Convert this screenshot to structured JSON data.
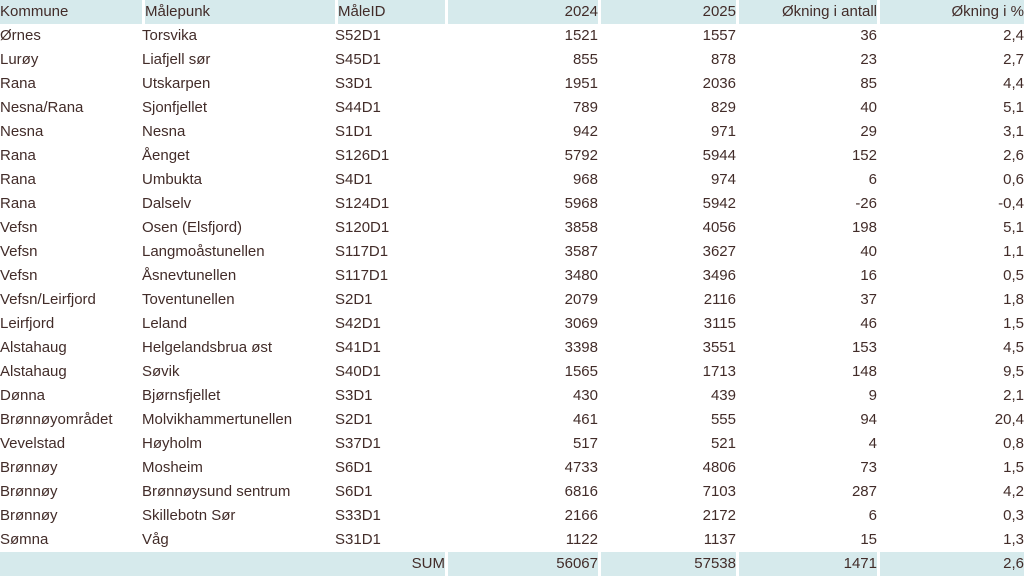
{
  "colors": {
    "header_bg": "#D6EAEC",
    "sum_bg": "#D6EAEC",
    "row_bg": "#FFFFFF",
    "text": "#422C29",
    "separator": "#FFFFFF"
  },
  "table": {
    "columns": [
      {
        "key": "kommune",
        "label": "Kommune",
        "align": "left"
      },
      {
        "key": "malepunk",
        "label": "Målepunk",
        "align": "left"
      },
      {
        "key": "maleid",
        "label": "MåleID",
        "align": "left"
      },
      {
        "key": "y2024",
        "label": "2024",
        "align": "right"
      },
      {
        "key": "y2025",
        "label": "2025",
        "align": "right"
      },
      {
        "key": "okning_antall",
        "label": "Økning i antall",
        "align": "right"
      },
      {
        "key": "okning_pct",
        "label": "Økning i %",
        "align": "right"
      }
    ],
    "rows": [
      [
        "Ørnes",
        "Torsvika",
        "S52D1",
        "1521",
        "1557",
        "36",
        "2,4"
      ],
      [
        "Lurøy",
        "Liafjell sør",
        "S45D1",
        "855",
        "878",
        "23",
        "2,7"
      ],
      [
        "Rana",
        "Utskarpen",
        "S3D1",
        "1951",
        "2036",
        "85",
        "4,4"
      ],
      [
        "Nesna/Rana",
        "Sjonfjellet",
        "S44D1",
        "789",
        "829",
        "40",
        "5,1"
      ],
      [
        "Nesna",
        "Nesna",
        "S1D1",
        "942",
        "971",
        "29",
        "3,1"
      ],
      [
        "Rana",
        "Åenget",
        "S126D1",
        "5792",
        "5944",
        "152",
        "2,6"
      ],
      [
        "Rana",
        "Umbukta",
        "S4D1",
        "968",
        "974",
        "6",
        "0,6"
      ],
      [
        "Rana",
        "Dalselv",
        "S124D1",
        "5968",
        "5942",
        "-26",
        "-0,4"
      ],
      [
        "Vefsn",
        "Osen (Elsfjord)",
        "S120D1",
        "3858",
        "4056",
        "198",
        "5,1"
      ],
      [
        "Vefsn",
        "Langmoåstunellen",
        "S117D1",
        "3587",
        "3627",
        "40",
        "1,1"
      ],
      [
        "Vefsn",
        "Åsnevtunellen",
        "S117D1",
        "3480",
        "3496",
        "16",
        "0,5"
      ],
      [
        "Vefsn/Leirfjord",
        "Toventunellen",
        "S2D1",
        "2079",
        "2116",
        "37",
        "1,8"
      ],
      [
        "Leirfjord",
        "Leland",
        "S42D1",
        "3069",
        "3115",
        "46",
        "1,5"
      ],
      [
        "Alstahaug",
        "Helgelandsbrua øst",
        "S41D1",
        "3398",
        "3551",
        "153",
        "4,5"
      ],
      [
        "Alstahaug",
        "Søvik",
        "S40D1",
        "1565",
        "1713",
        "148",
        "9,5"
      ],
      [
        "Dønna",
        "Bjørnsfjellet",
        "S3D1",
        "430",
        "439",
        "9",
        "2,1"
      ],
      [
        "Brønnøyområdet",
        "Molvikhammertunellen",
        "S2D1",
        "461",
        "555",
        "94",
        "20,4"
      ],
      [
        "Vevelstad",
        "Høyholm",
        "S37D1",
        "517",
        "521",
        "4",
        "0,8"
      ],
      [
        "Brønnøy",
        "Mosheim",
        "S6D1",
        "4733",
        "4806",
        "73",
        "1,5"
      ],
      [
        "Brønnøy",
        "Brønnøysund sentrum",
        "S6D1",
        "6816",
        "7103",
        "287",
        "4,2"
      ],
      [
        "Brønnøy",
        "Skillebotn Sør",
        "S33D1",
        "2166",
        "2172",
        "6",
        "0,3"
      ],
      [
        "Sømna",
        "Våg",
        "S31D1",
        "1122",
        "1137",
        "15",
        "1,3"
      ]
    ],
    "sum_row": {
      "label": "SUM",
      "y2024": "56067",
      "y2025": "57538",
      "okning_antall": "1471",
      "okning_pct": "2,6"
    }
  }
}
